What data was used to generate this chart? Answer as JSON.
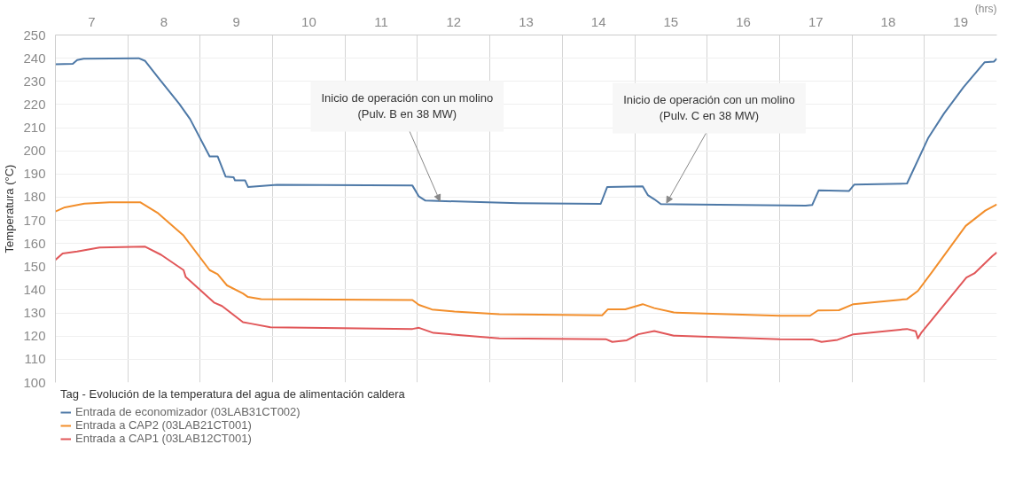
{
  "chart_data": {
    "type": "line",
    "xlabel": "(hrs)",
    "ylabel": "Temperatura (°C)",
    "legend_title": "Tag - Evolución de la temperatura del agua de alimentación caldera",
    "legend": "bottom left",
    "grid": true,
    "line_style": "solid",
    "xlim": [
      7,
      20
    ],
    "ylim": [
      100,
      250
    ],
    "xticks": [
      {
        "value": 7.5,
        "label": "7"
      },
      {
        "value": 8.5,
        "label": "8"
      },
      {
        "value": 9.5,
        "label": "9"
      },
      {
        "value": 10.5,
        "label": "10"
      },
      {
        "value": 11.5,
        "label": "11"
      },
      {
        "value": 12.5,
        "label": "12"
      },
      {
        "value": 13.5,
        "label": "13"
      },
      {
        "value": 14.5,
        "label": "14"
      },
      {
        "value": 15.5,
        "label": "15"
      },
      {
        "value": 16.5,
        "label": "16"
      },
      {
        "value": 17.5,
        "label": "17"
      },
      {
        "value": 18.5,
        "label": "18"
      },
      {
        "value": 19.5,
        "label": "19"
      },
      {
        "value": 8,
        "label": null
      },
      {
        "value": 9,
        "label": null
      },
      {
        "value": 10,
        "label": null
      },
      {
        "value": 11,
        "label": null
      },
      {
        "value": 12,
        "label": null
      },
      {
        "value": 13,
        "label": null
      },
      {
        "value": 14,
        "label": null
      },
      {
        "value": 15,
        "label": null
      },
      {
        "value": 16,
        "label": null
      },
      {
        "value": 17,
        "label": null
      },
      {
        "value": 18,
        "label": null
      },
      {
        "value": 19,
        "label": null
      }
    ],
    "yticks": [
      100,
      110,
      120,
      130,
      140,
      150,
      160,
      170,
      180,
      190,
      200,
      210,
      220,
      230,
      240,
      250
    ],
    "series": [
      {
        "name": "Entrada de economizador (03LAB31CT002)",
        "color": "#4e79a7",
        "x": [
          7.0,
          7.24,
          7.3,
          7.39,
          8.15,
          8.24,
          8.42,
          8.71,
          8.86,
          9.13,
          9.24,
          9.35,
          9.46,
          9.48,
          9.62,
          9.66,
          10.06,
          11.93,
          12.02,
          12.11,
          13.18,
          13.4,
          14.53,
          14.62,
          15.11,
          15.18,
          15.27,
          15.36,
          17.36,
          17.45,
          17.54,
          17.96,
          18.03,
          18.76,
          19.05,
          19.27,
          19.54,
          19.83,
          19.96,
          20.0
        ],
        "values": [
          237.4,
          237.6,
          239.2,
          239.8,
          240,
          238.8,
          231.6,
          220.3,
          213.7,
          197.6,
          197.6,
          188.9,
          188.6,
          187.2,
          187.2,
          184.4,
          185.3,
          185,
          180.3,
          178.5,
          177.6,
          177.4,
          177.1,
          184.4,
          184.7,
          180.9,
          179.1,
          177.0,
          176.3,
          176.6,
          182.9,
          182.7,
          185.4,
          185.9,
          205.4,
          216.1,
          227.5,
          238.2,
          238.5,
          239.8
        ]
      },
      {
        "name": "Entrada a CAP2 (03LAB21CT001)",
        "color": "#f28e2b",
        "x": [
          7.0,
          7.13,
          7.4,
          7.75,
          8.17,
          8.42,
          8.77,
          9.13,
          9.24,
          9.37,
          9.59,
          9.66,
          9.84,
          11.93,
          12.02,
          12.2,
          12.51,
          13.13,
          14.55,
          14.63,
          14.87,
          15.11,
          15.27,
          15.54,
          17.0,
          17.42,
          17.53,
          17.82,
          18.02,
          18.76,
          18.91,
          19.11,
          19.57,
          19.84,
          20.0
        ],
        "values": [
          173.8,
          175.6,
          177.2,
          177.8,
          177.8,
          173.0,
          163.4,
          148.5,
          146.7,
          141.9,
          138.4,
          136.9,
          136.0,
          135.6,
          133.5,
          131.5,
          130.6,
          129.5,
          129.0,
          131.6,
          131.6,
          133.8,
          132.1,
          130.2,
          128.8,
          128.8,
          131.1,
          131.2,
          133.8,
          136.0,
          139.5,
          147.9,
          167.6,
          174.2,
          176.9
        ]
      },
      {
        "name": "Entrada a CAP1 (03LAB12CT001)",
        "color": "#e15759",
        "x": [
          7.0,
          7.1,
          7.3,
          7.61,
          8.24,
          8.46,
          8.77,
          8.8,
          9.19,
          9.3,
          9.59,
          9.7,
          9.97,
          11.93,
          12.02,
          12.22,
          13.13,
          14.6,
          14.69,
          14.89,
          15.05,
          15.27,
          15.54,
          17.0,
          17.45,
          17.58,
          17.8,
          18.02,
          18.76,
          18.88,
          18.91,
          18.96,
          19.58,
          19.69,
          19.94,
          20.0
        ],
        "values": [
          152.9,
          155.7,
          156.5,
          158.3,
          158.6,
          155.1,
          148.5,
          145.5,
          134.5,
          133.0,
          126.0,
          125.4,
          123.8,
          123.1,
          123.6,
          121.4,
          119.0,
          118.7,
          117.5,
          118.2,
          120.8,
          122.2,
          120.2,
          118.7,
          118.6,
          117.5,
          118.4,
          120.8,
          123.1,
          122.1,
          119.0,
          121.6,
          145.3,
          147.1,
          154.6,
          156.1
        ]
      }
    ],
    "annotations": [
      {
        "text": "Inicio de operación con un molino\n(Pulv. B en 38 MW)",
        "x": 12.31,
        "y": 178.3
      },
      {
        "text": "Inicio de operación con un molino\n(Pulv. C en 38 MW)",
        "x": 15.44,
        "y": 177.5
      }
    ]
  }
}
